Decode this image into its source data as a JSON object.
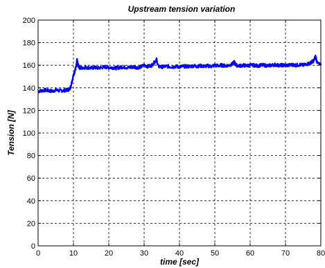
{
  "chart_data": {
    "type": "line",
    "title": "Upstream tension variation",
    "xlabel": "time [sec]",
    "ylabel": "Tension [N]",
    "xlim": [
      0,
      80
    ],
    "ylim": [
      0,
      200
    ],
    "xticks": [
      0,
      10,
      20,
      30,
      40,
      50,
      60,
      70,
      80
    ],
    "yticks": [
      0,
      20,
      40,
      60,
      80,
      100,
      120,
      140,
      160,
      180,
      200
    ],
    "grid": true,
    "grid_style": "dashed",
    "series": [
      {
        "color": "#0000ff",
        "noise": 1.5,
        "x": [
          0,
          1,
          2,
          3,
          4,
          5,
          6,
          7,
          8,
          8.8,
          9.2,
          9.6,
          10.0,
          10.4,
          10.8,
          11.0,
          11.3,
          11.7,
          12,
          13,
          14,
          15,
          16,
          17,
          18,
          19,
          20,
          21,
          22,
          23,
          24,
          25,
          26,
          27,
          28,
          29,
          30,
          31,
          32,
          33,
          33.5,
          34,
          35,
          36,
          37,
          38,
          39,
          40,
          41,
          42,
          43,
          44,
          45,
          46,
          47,
          48,
          49,
          50,
          51,
          52,
          53,
          54,
          55,
          55.5,
          56,
          57,
          58,
          59,
          60,
          61,
          62,
          63,
          64,
          65,
          66,
          67,
          68,
          69,
          70,
          71,
          72,
          73,
          74,
          75,
          76,
          77,
          77.5,
          78,
          78.5,
          79,
          80
        ],
        "y": [
          137,
          137.5,
          138,
          137.5,
          137,
          138,
          137.5,
          137.5,
          138,
          138.5,
          141,
          146,
          151,
          155,
          159,
          165,
          160,
          158,
          157.5,
          158,
          158,
          157.5,
          158,
          157.5,
          158,
          158.5,
          158,
          158,
          157.5,
          158,
          158.5,
          158,
          158,
          158.5,
          158,
          158.5,
          160,
          159,
          159.5,
          163,
          165,
          159,
          158.5,
          159,
          159,
          158.5,
          159,
          158.5,
          159,
          159,
          159,
          159.5,
          159,
          159.5,
          159,
          159.5,
          159,
          160,
          159.5,
          160,
          159.5,
          160,
          161,
          163,
          160,
          159.5,
          160,
          159.5,
          160,
          160,
          159.5,
          160,
          160,
          159.5,
          160,
          160.5,
          160,
          160,
          160,
          160,
          160.5,
          160,
          160.5,
          160,
          161,
          162,
          163,
          164,
          168,
          162,
          160
        ]
      }
    ]
  }
}
